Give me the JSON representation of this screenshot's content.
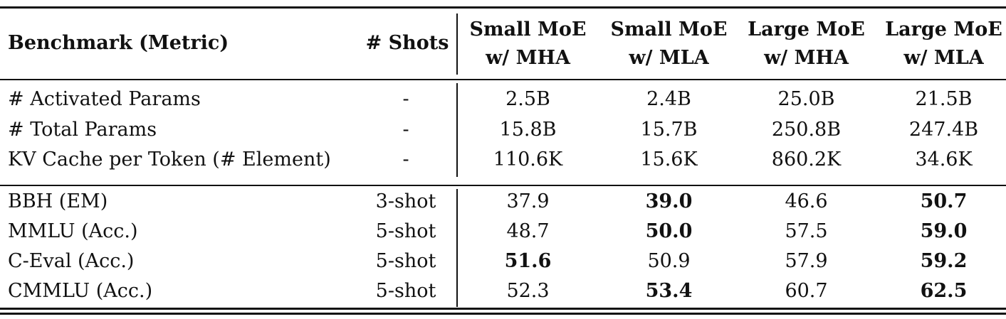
{
  "header": {
    "benchmark": "Benchmark (Metric)",
    "shots": "# Shots",
    "columns": [
      {
        "line1": "Small MoE",
        "line2": "w/ MHA"
      },
      {
        "line1": "Small MoE",
        "line2": "w/ MLA"
      },
      {
        "line1": "Large MoE",
        "line2": "w/ MHA"
      },
      {
        "line1": "Large MoE",
        "line2": "w/ MLA"
      }
    ]
  },
  "stats_rows": [
    {
      "label": "# Activated Params",
      "shots": "-",
      "values": [
        "2.5B",
        "2.4B",
        "25.0B",
        "21.5B"
      ]
    },
    {
      "label": "# Total Params",
      "shots": "-",
      "values": [
        "15.8B",
        "15.7B",
        "250.8B",
        "247.4B"
      ]
    },
    {
      "label": "KV Cache per Token (# Element)",
      "shots": "-",
      "values": [
        "110.6K",
        "15.6K",
        "860.2K",
        "34.6K"
      ]
    }
  ],
  "benchmark_rows": [
    {
      "label": "BBH (EM)",
      "shots": "3-shot",
      "values": [
        "37.9",
        "39.0",
        "46.6",
        "50.7"
      ],
      "bold": [
        false,
        true,
        false,
        true
      ]
    },
    {
      "label": "MMLU (Acc.)",
      "shots": "5-shot",
      "values": [
        "48.7",
        "50.0",
        "57.5",
        "59.0"
      ],
      "bold": [
        false,
        true,
        false,
        true
      ]
    },
    {
      "label": "C-Eval (Acc.)",
      "shots": "5-shot",
      "values": [
        "51.6",
        "50.9",
        "57.9",
        "59.2"
      ],
      "bold": [
        true,
        false,
        false,
        true
      ]
    },
    {
      "label": "CMMLU (Acc.)",
      "shots": "5-shot",
      "values": [
        "52.3",
        "53.4",
        "60.7",
        "62.5"
      ],
      "bold": [
        false,
        true,
        false,
        true
      ]
    }
  ]
}
